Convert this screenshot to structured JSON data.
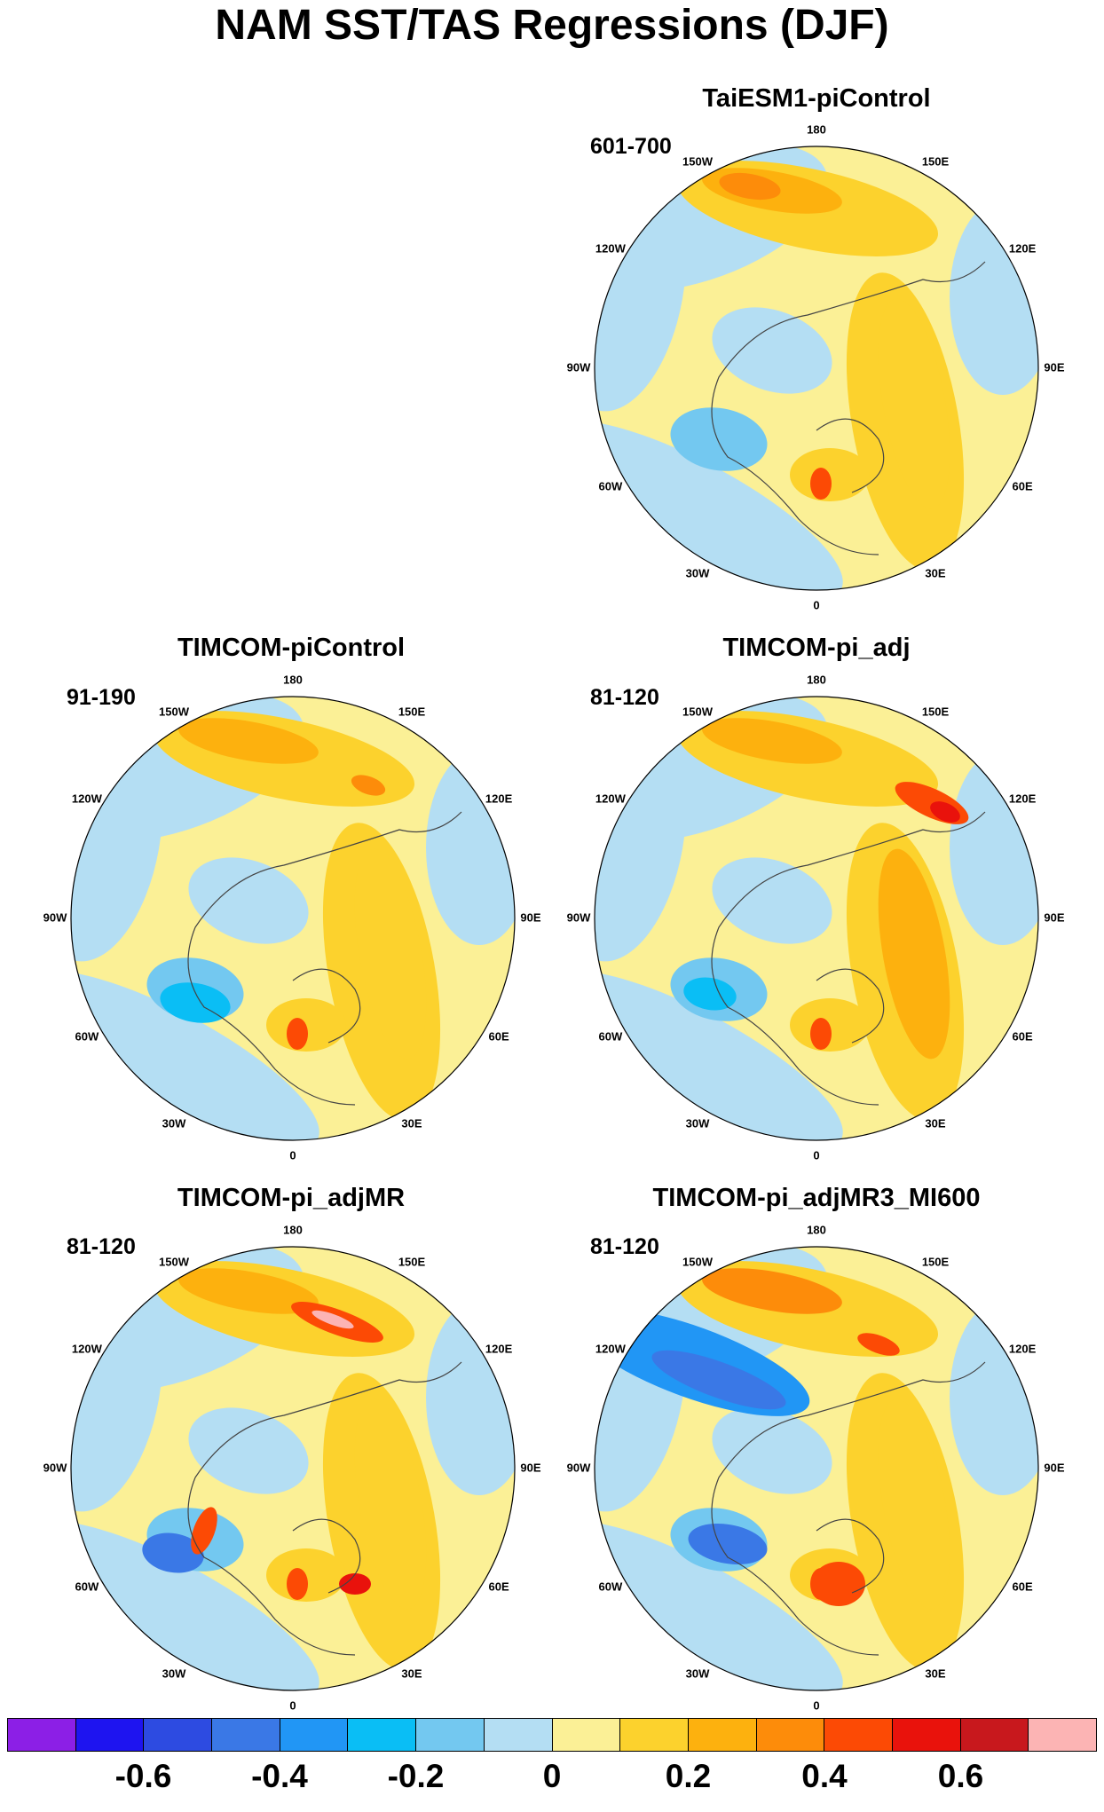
{
  "title": "NAM SST/TAS Regressions (DJF)",
  "longitude_labels": [
    "180",
    "150E",
    "120E",
    "90E",
    "60E",
    "30E",
    "0",
    "30W",
    "60W",
    "90W",
    "120W",
    "150W"
  ],
  "panels": [
    {
      "id": "taiesm1",
      "title": "TaiESM1-piControl",
      "period": "601-700",
      "features": [
        "warm-npac-arc",
        "warm-eurasia",
        "cool-labrador",
        "cool-atlantic-belt"
      ]
    },
    {
      "id": "timcom-picontrol",
      "title": "TIMCOM-piControl",
      "period": "91-190",
      "features": [
        "warm-npac-arc",
        "warm-eurasia",
        "cool-labrador",
        "warm-scandinavia"
      ]
    },
    {
      "id": "timcom-pi-adj",
      "title": "TIMCOM-pi_adj",
      "period": "81-120",
      "features": [
        "warm-npac-arc",
        "warm-eurasia-strong",
        "cool-labrador",
        "warm-okhotsk"
      ]
    },
    {
      "id": "timcom-pi-adjmr",
      "title": "TIMCOM-pi_adjMR",
      "period": "81-120",
      "features": [
        "warm-npac-arc",
        "warm-eurasia",
        "cool-labrador",
        "hot-bering"
      ]
    },
    {
      "id": "timcom-pi-adjmr3",
      "title": "TIMCOM-pi_adjMR3_MI600",
      "period": "81-120",
      "features": [
        "warm-npac-arc-strong",
        "warm-eurasia",
        "cool-labrador",
        "cool-npac-strong"
      ]
    }
  ],
  "colorbar": {
    "colors": [
      "#8c1fe6",
      "#1e14f0",
      "#2d4be1",
      "#3a78e6",
      "#2196f5",
      "#0abef5",
      "#73c8f0",
      "#b4def3",
      "#fbf096",
      "#fcd22d",
      "#fdb10e",
      "#fd8c0a",
      "#fc4a05",
      "#e9120c",
      "#c8181d",
      "#fcb4b4"
    ],
    "labels": [
      "-0.6",
      "-0.4",
      "-0.2",
      "0",
      "0.2",
      "0.4",
      "0.6"
    ]
  }
}
